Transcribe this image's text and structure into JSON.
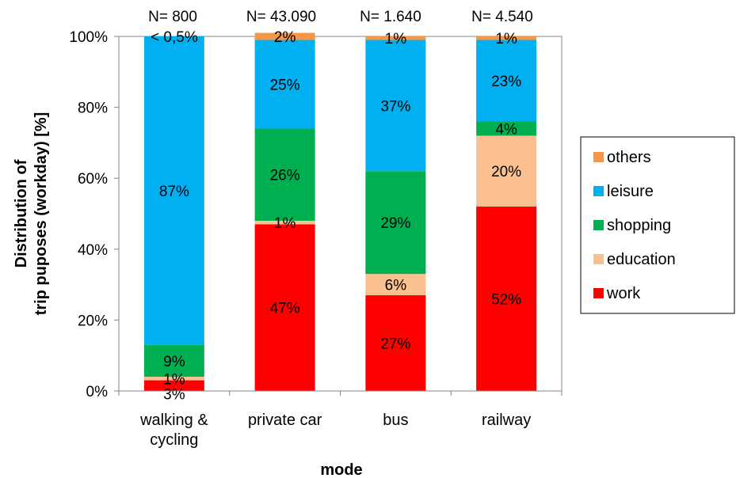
{
  "chart_data": {
    "type": "bar",
    "stacked": true,
    "categories": [
      "walking & cycling",
      "private car",
      "bus",
      "railway"
    ],
    "category_lines": [
      [
        "walking &",
        "cycling"
      ],
      [
        "private car"
      ],
      [
        "bus"
      ],
      [
        "railway"
      ]
    ],
    "sample_sizes": [
      "N= 800",
      "N= 43.090",
      "N= 1.640",
      "N= 4.540"
    ],
    "xlabel": "mode",
    "ylabel_lines": [
      "Distribution of",
      "trip puposes (workday) [%]"
    ],
    "ylim": [
      0,
      100
    ],
    "yticks": [
      0,
      20,
      40,
      60,
      80,
      100
    ],
    "ytick_labels": [
      "0%",
      "20%",
      "40%",
      "60%",
      "80%",
      "100%"
    ],
    "series": [
      {
        "name": "work",
        "color": "#ff0000",
        "values": [
          3,
          47,
          27,
          52
        ],
        "labels": [
          "3%",
          "47%",
          "27%",
          "52%"
        ]
      },
      {
        "name": "education",
        "color": "#fac090",
        "values": [
          1,
          1,
          6,
          20
        ],
        "labels": [
          "1%",
          "1%",
          "6%",
          "20%"
        ]
      },
      {
        "name": "shopping",
        "color": "#00b050",
        "values": [
          9,
          26,
          29,
          4
        ],
        "labels": [
          "9%",
          "26%",
          "29%",
          "4%"
        ]
      },
      {
        "name": "leisure",
        "color": "#00b0f0",
        "values": [
          87,
          25,
          37,
          23
        ],
        "labels": [
          "87%",
          "25%",
          "37%",
          "23%"
        ]
      },
      {
        "name": "others",
        "color": "#f79646",
        "values": [
          0,
          2,
          1,
          1
        ],
        "labels": [
          "< 0,5%",
          "2%",
          "1%",
          "1%"
        ]
      }
    ],
    "legend_order": [
      "others",
      "leisure",
      "shopping",
      "education",
      "work"
    ],
    "legend_position": "right",
    "grid": false
  }
}
